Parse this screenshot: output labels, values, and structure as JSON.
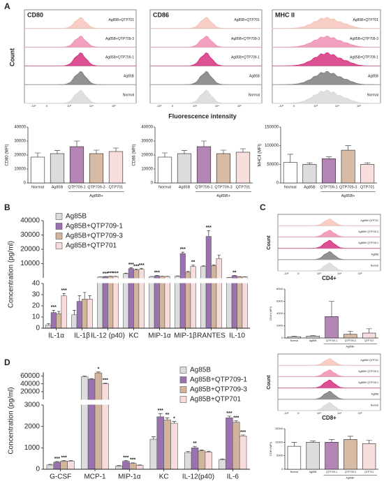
{
  "figure": {
    "panel_labels": [
      "A",
      "B",
      "C",
      "D"
    ],
    "a_ylabel": "Count",
    "a_xlabel": "Fluorescence intensity"
  },
  "chart_data": [
    {
      "type": "flow",
      "title": "CD80",
      "xtick_labels": [
        "-10³",
        "0",
        "10³",
        "10⁴",
        "10⁵"
      ],
      "series": [
        {
          "name": "Ag85B+QTP701",
          "color": "#f6c4bc"
        },
        {
          "name": "Ag85B+QTP709-3",
          "color": "#ef8fb4"
        },
        {
          "name": "Ag85B+QTP709-1",
          "color": "#d6337f"
        },
        {
          "name": "Ag85B",
          "color": "#7f7f7f"
        },
        {
          "name": "Normal",
          "color": "#d9d9d9"
        }
      ]
    },
    {
      "type": "flow",
      "title": "CD86",
      "xtick_labels": [
        "-10³",
        "0",
        "10³",
        "10⁴",
        "10⁵"
      ],
      "series": [
        {
          "name": "Ag85B+QTP701",
          "color": "#f6c4bc"
        },
        {
          "name": "Ag85B+QTP709-3",
          "color": "#ef8fb4"
        },
        {
          "name": "Ag85B+QTP709-1",
          "color": "#d6337f"
        },
        {
          "name": "Ag85B",
          "color": "#7f7f7f"
        },
        {
          "name": "Normal",
          "color": "#d9d9d9"
        }
      ]
    },
    {
      "type": "flow",
      "title": "MHC II",
      "xtick_labels": [
        "-10³",
        "0",
        "10³",
        "10⁴",
        "10⁵"
      ],
      "series": [
        {
          "name": "Ag85B+QTP701",
          "color": "#f6c4bc"
        },
        {
          "name": "Ag85B+QTP709-3",
          "color": "#ef8fb4"
        },
        {
          "name": "Ag85B+QTP709-1",
          "color": "#d6337f"
        },
        {
          "name": "Ag85B",
          "color": "#7f7f7f"
        },
        {
          "name": "Normal",
          "color": "#d9d9d9"
        }
      ]
    },
    {
      "type": "bar",
      "ylabel": "CD80 (MFI)",
      "categories": [
        "Normal",
        "Ag85B",
        "QTP709-1",
        "QTP709-3",
        "QTP701"
      ],
      "group_label": "Ag85B+",
      "values": [
        18500,
        21000,
        26000,
        21000,
        22500
      ],
      "errors": [
        3000,
        2200,
        4000,
        2500,
        2500
      ],
      "colors": [
        "#ffffff",
        "#dcdcdc",
        "#b585b5",
        "#d8bba4",
        "#f9dede"
      ],
      "ylim": [
        0,
        40000
      ],
      "yticks": [
        0,
        10000,
        20000,
        30000,
        40000
      ]
    },
    {
      "type": "bar",
      "ylabel": "CD86 (MFI)",
      "categories": [
        "Normal",
        "Ag85B",
        "QTP709-1",
        "QTP709-3",
        "QTP701"
      ],
      "group_label": "Ag85B+",
      "values": [
        18500,
        21000,
        26000,
        21000,
        22000
      ],
      "errors": [
        3000,
        2200,
        4000,
        2500,
        2500
      ],
      "colors": [
        "#ffffff",
        "#dcdcdc",
        "#b585b5",
        "#d8bba4",
        "#f9dede"
      ],
      "ylim": [
        0,
        40000
      ],
      "yticks": [
        0,
        10000,
        20000,
        30000,
        40000
      ]
    },
    {
      "type": "bar",
      "ylabel": "MHCⅡ (MFI)",
      "categories": [
        "Normal",
        "Ag85B",
        "QTP709-1",
        "QTP709-3",
        "QTP701"
      ],
      "group_label": "Ag85B+",
      "values": [
        55000,
        50000,
        65000,
        88000,
        50000
      ],
      "errors": [
        22000,
        4000,
        5000,
        12000,
        4000
      ],
      "colors": [
        "#ffffff",
        "#dcdcdc",
        "#b585b5",
        "#d8bba4",
        "#f9dede"
      ],
      "ylim": [
        0,
        150000
      ],
      "yticks": [
        0,
        50000,
        100000,
        150000
      ]
    },
    {
      "type": "broken_bar",
      "ylabel": "Concentration (pg/ml)",
      "categories": [
        "IL-1α",
        "IL-1β",
        "IL-12 (p40)",
        "KC",
        "MIP-1α",
        "MIP-1β",
        "RANTES",
        "IL-10"
      ],
      "segments": [
        {
          "ylim": [
            0,
            40
          ],
          "yticks": [
            0,
            10,
            20,
            30,
            40
          ]
        },
        {
          "ylim": [
            0,
            40000
          ],
          "yticks": [
            10000,
            20000,
            30000,
            40000
          ]
        }
      ],
      "series": [
        {
          "name": "Ag85B",
          "color": "#dcdcdc",
          "values": [
            3,
            12,
            600,
            3000,
            900,
            1200,
            8000,
            300
          ],
          "errors": [
            1,
            4,
            100,
            300,
            100,
            200,
            500,
            50
          ],
          "significance": [
            null,
            null,
            null,
            null,
            null,
            null,
            null,
            null
          ]
        },
        {
          "name": "Ag85B+QTP709-1",
          "color": "#9b72b0",
          "values": [
            14,
            24,
            900,
            6500,
            1500,
            17000,
            29000,
            1500
          ],
          "errors": [
            2,
            5,
            100,
            700,
            200,
            1000,
            4000,
            200
          ],
          "significance": [
            "***",
            null,
            "***",
            "***",
            "***",
            "***",
            "***",
            "**"
          ]
        },
        {
          "name": "Ag85B+QTP709-3",
          "color": "#d2b49c",
          "values": [
            13,
            26,
            1100,
            5500,
            1100,
            4000,
            8500,
            800
          ],
          "errors": [
            2,
            6,
            100,
            600,
            100,
            500,
            600,
            100
          ],
          "significance": [
            null,
            null,
            "***",
            "***",
            null,
            null,
            null,
            null
          ]
        },
        {
          "name": "Ag85B+QTP701",
          "color": "#f8dcdc",
          "values": [
            29,
            26,
            1000,
            6000,
            1000,
            8000,
            13500,
            700
          ],
          "errors": [
            2,
            3,
            100,
            700,
            100,
            900,
            2500,
            100
          ],
          "significance": [
            "***",
            null,
            "***",
            "***",
            null,
            "**",
            null,
            null
          ]
        }
      ]
    },
    {
      "type": "flow",
      "xlabel": "CD4+",
      "ylabel": "Count",
      "xtick_labels": [
        "-10³",
        "0",
        "10³",
        "10⁴",
        "10⁵"
      ],
      "series": [
        {
          "name": "Ag85B+QTP701",
          "color": "#f6c4bc"
        },
        {
          "name": "Ag85B+QTP709-3",
          "color": "#ef8fb4"
        },
        {
          "name": "Ag85B+QTP709-1",
          "color": "#d6337f"
        },
        {
          "name": "Ag85B",
          "color": "#7f7f7f"
        },
        {
          "name": "Normal",
          "color": "#d9d9d9"
        }
      ]
    },
    {
      "type": "bar",
      "ylabel": "CD4+(MFI)",
      "categories": [
        "Normal",
        "Ag85B",
        "QTP709-1",
        "QTP709-3",
        "QTP701"
      ],
      "group_label": "Ag85B+",
      "values": [
        200,
        300,
        3500,
        600,
        800
      ],
      "errors": [
        100,
        100,
        2500,
        500,
        700
      ],
      "colors": [
        "#ffffff",
        "#dcdcdc",
        "#b585b5",
        "#d8bba4",
        "#f9dede"
      ],
      "ylim": [
        0,
        8000
      ],
      "yticks": [
        0,
        2000,
        4000,
        6000,
        8000
      ]
    },
    {
      "type": "flow",
      "xlabel": "CD8+",
      "ylabel": "Count",
      "xtick_labels": [
        "-10³",
        "0",
        "10³",
        "10⁴",
        "10⁵"
      ],
      "series": [
        {
          "name": "Ag85B+QTP701",
          "color": "#f6c4bc"
        },
        {
          "name": "Ag85B+QTP709-3",
          "color": "#ef8fb4"
        },
        {
          "name": "Ag85B+QTP709-1",
          "color": "#d6337f"
        },
        {
          "name": "Ag85B",
          "color": "#7f7f7f"
        },
        {
          "name": "Normal",
          "color": "#d9d9d9"
        }
      ]
    },
    {
      "type": "bar",
      "ylabel": "CD8+(MFI)",
      "categories": [
        "Normal",
        "Ag85B",
        "QTP709-1",
        "QTP709-3",
        "QTP701"
      ],
      "group_label": "Ag85B+",
      "values": [
        8500,
        10000,
        10000,
        11000,
        9500
      ],
      "errors": [
        1500,
        500,
        1000,
        1200,
        1200
      ],
      "colors": [
        "#ffffff",
        "#dcdcdc",
        "#b585b5",
        "#d8bba4",
        "#f9dede"
      ],
      "ylim": [
        0,
        15000
      ],
      "yticks": [
        0,
        5000,
        10000,
        15000
      ]
    },
    {
      "type": "broken_bar",
      "ylabel": "Concentration (pg/ml)",
      "categories": [
        "G-CSF",
        "MCP-1",
        "MIP-1α",
        "KC",
        "IL-12(p40)",
        "IL-6"
      ],
      "segments": [
        {
          "ylim": [
            0,
            3000
          ],
          "yticks": [
            0,
            1000,
            2000,
            3000
          ]
        },
        {
          "ylim": [
            0,
            70000
          ],
          "yticks": [
            20000,
            40000,
            60000
          ]
        }
      ],
      "series": [
        {
          "name": "Ag85B",
          "color": "#dcdcdc",
          "values": [
            200,
            58000,
            150,
            1400,
            780,
            450
          ],
          "errors": [
            30,
            2000,
            20,
            120,
            50,
            30
          ],
          "significance": [
            null,
            null,
            null,
            null,
            null,
            null
          ]
        },
        {
          "name": "Ag85B+QTP709-1",
          "color": "#9b72b0",
          "values": [
            330,
            52000,
            370,
            2450,
            1000,
            2400
          ],
          "errors": [
            30,
            1500,
            40,
            150,
            70,
            80
          ],
          "significance": [
            "***",
            null,
            "***",
            "***",
            "**",
            "***"
          ]
        },
        {
          "name": "Ag85B+QTP709-3",
          "color": "#d2b49c",
          "values": [
            380,
            68000,
            270,
            2300,
            860,
            2200
          ],
          "errors": [
            30,
            2500,
            30,
            100,
            40,
            60
          ],
          "significance": [
            "***",
            "*",
            "***",
            "**",
            null,
            "***"
          ]
        },
        {
          "name": "Ag85B+QTP701",
          "color": "#f8dcdc",
          "values": [
            380,
            40000,
            180,
            2150,
            800,
            1550
          ],
          "errors": [
            30,
            1500,
            20,
            80,
            40,
            50
          ],
          "significance": [
            null,
            "***",
            null,
            "*",
            null,
            "***"
          ]
        }
      ]
    }
  ]
}
